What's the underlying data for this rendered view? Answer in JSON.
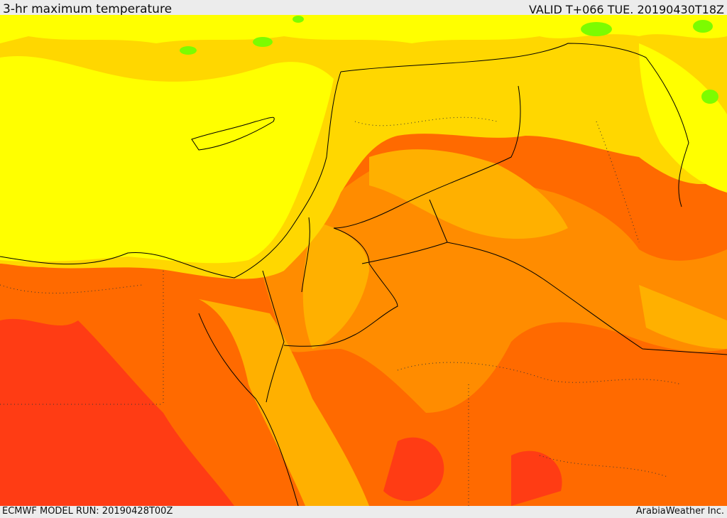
{
  "header": {
    "title": "3-hr maximum temperature",
    "valid": "VALID T+066 TUE. 20190430T18Z"
  },
  "footer": {
    "model_run": "ECMWF MODEL RUN: 20190428T00Z",
    "credit": "ArabiaWeather Inc."
  },
  "colors": {
    "band_cool": "#ffff00",
    "band_warm1": "#ffd700",
    "band_warm2": "#ffb000",
    "band_hot1": "#ff8c00",
    "band_hot2": "#ff6a00",
    "band_hot3": "#ff3c14",
    "band_green": "#7cfc00",
    "border_line": "#000000"
  }
}
